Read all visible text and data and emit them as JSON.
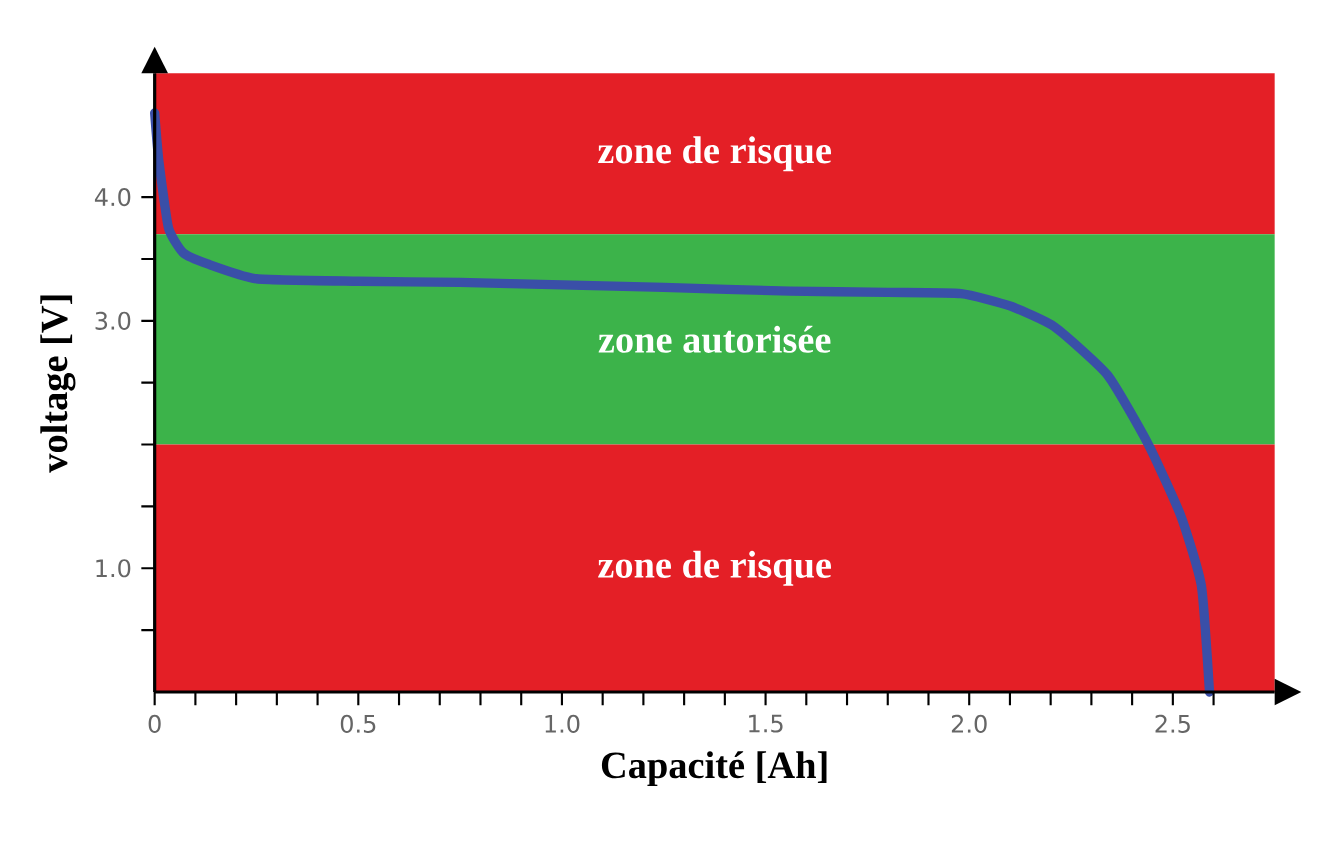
{
  "chart_data": {
    "type": "line",
    "xlabel": "Capacité [Ah]",
    "ylabel": "voltage [V]",
    "xlim": [
      0,
      2.75
    ],
    "ylim": [
      0,
      5.0
    ],
    "xticks": [
      0,
      {
        "value": 0.1,
        "label": null
      },
      {
        "value": 0.2,
        "label": null
      },
      {
        "value": 0.3,
        "label": null
      },
      {
        "value": 0.4,
        "label": null
      },
      0.5,
      {
        "value": 0.6,
        "label": null
      },
      {
        "value": 0.7,
        "label": null
      },
      {
        "value": 0.8,
        "label": null
      },
      {
        "value": 0.9,
        "label": null
      },
      {
        "value": 1.0,
        "label": "1.0"
      },
      {
        "value": 1.1,
        "label": null
      },
      {
        "value": 1.2,
        "label": null
      },
      {
        "value": 1.3,
        "label": null
      },
      {
        "value": 1.4,
        "label": null
      },
      1.5,
      {
        "value": 1.6,
        "label": null
      },
      {
        "value": 1.7,
        "label": null
      },
      {
        "value": 1.8,
        "label": null
      },
      {
        "value": 1.9,
        "label": null
      },
      {
        "value": 2.0,
        "label": "2.0"
      },
      {
        "value": 2.1,
        "label": null
      },
      {
        "value": 2.2,
        "label": null
      },
      {
        "value": 2.3,
        "label": null
      },
      {
        "value": 2.4,
        "label": null
      },
      2.5,
      {
        "value": 2.6,
        "label": null
      }
    ],
    "yticks": [
      {
        "value": 0.5,
        "label": null
      },
      {
        "value": 1.0,
        "label": "1.0"
      },
      {
        "value": 1.5,
        "label": null
      },
      {
        "value": 2.0,
        "label": null
      },
      {
        "value": 2.5,
        "label": null
      },
      {
        "value": 3.0,
        "label": "3.0"
      },
      {
        "value": 3.5,
        "label": null
      },
      {
        "value": 4.0,
        "label": "4.0"
      }
    ],
    "x": [
      0,
      0.01,
      0.034,
      0.07,
      0.13,
      0.25,
      0.5,
      0.75,
      1.0,
      1.25,
      1.56,
      1.8,
      1.98,
      2.1,
      2.21,
      2.34,
      2.44,
      2.52,
      2.57,
      2.59
    ],
    "series": [
      {
        "color": "#3a4fa8",
        "values": [
          4.68,
          4.3,
          3.75,
          3.55,
          3.46,
          3.34,
          3.32,
          3.31,
          3.29,
          3.27,
          3.24,
          3.23,
          3.22,
          3.12,
          2.95,
          2.56,
          2.0,
          1.42,
          0.86,
          0
        ]
      }
    ],
    "bands": [
      {
        "axis": "y",
        "from": 3.7,
        "to": 5.0,
        "label": "zone de risque",
        "color": "#e41f26"
      },
      {
        "axis": "y",
        "from": 2.0,
        "to": 3.7,
        "label": "zone autorisée",
        "color": "#3cb34a"
      },
      {
        "axis": "y",
        "from": 0,
        "to": 2.0,
        "label": "zone de risque",
        "color": "#e41f26"
      }
    ],
    "marker": "none",
    "line_style": "solid"
  }
}
